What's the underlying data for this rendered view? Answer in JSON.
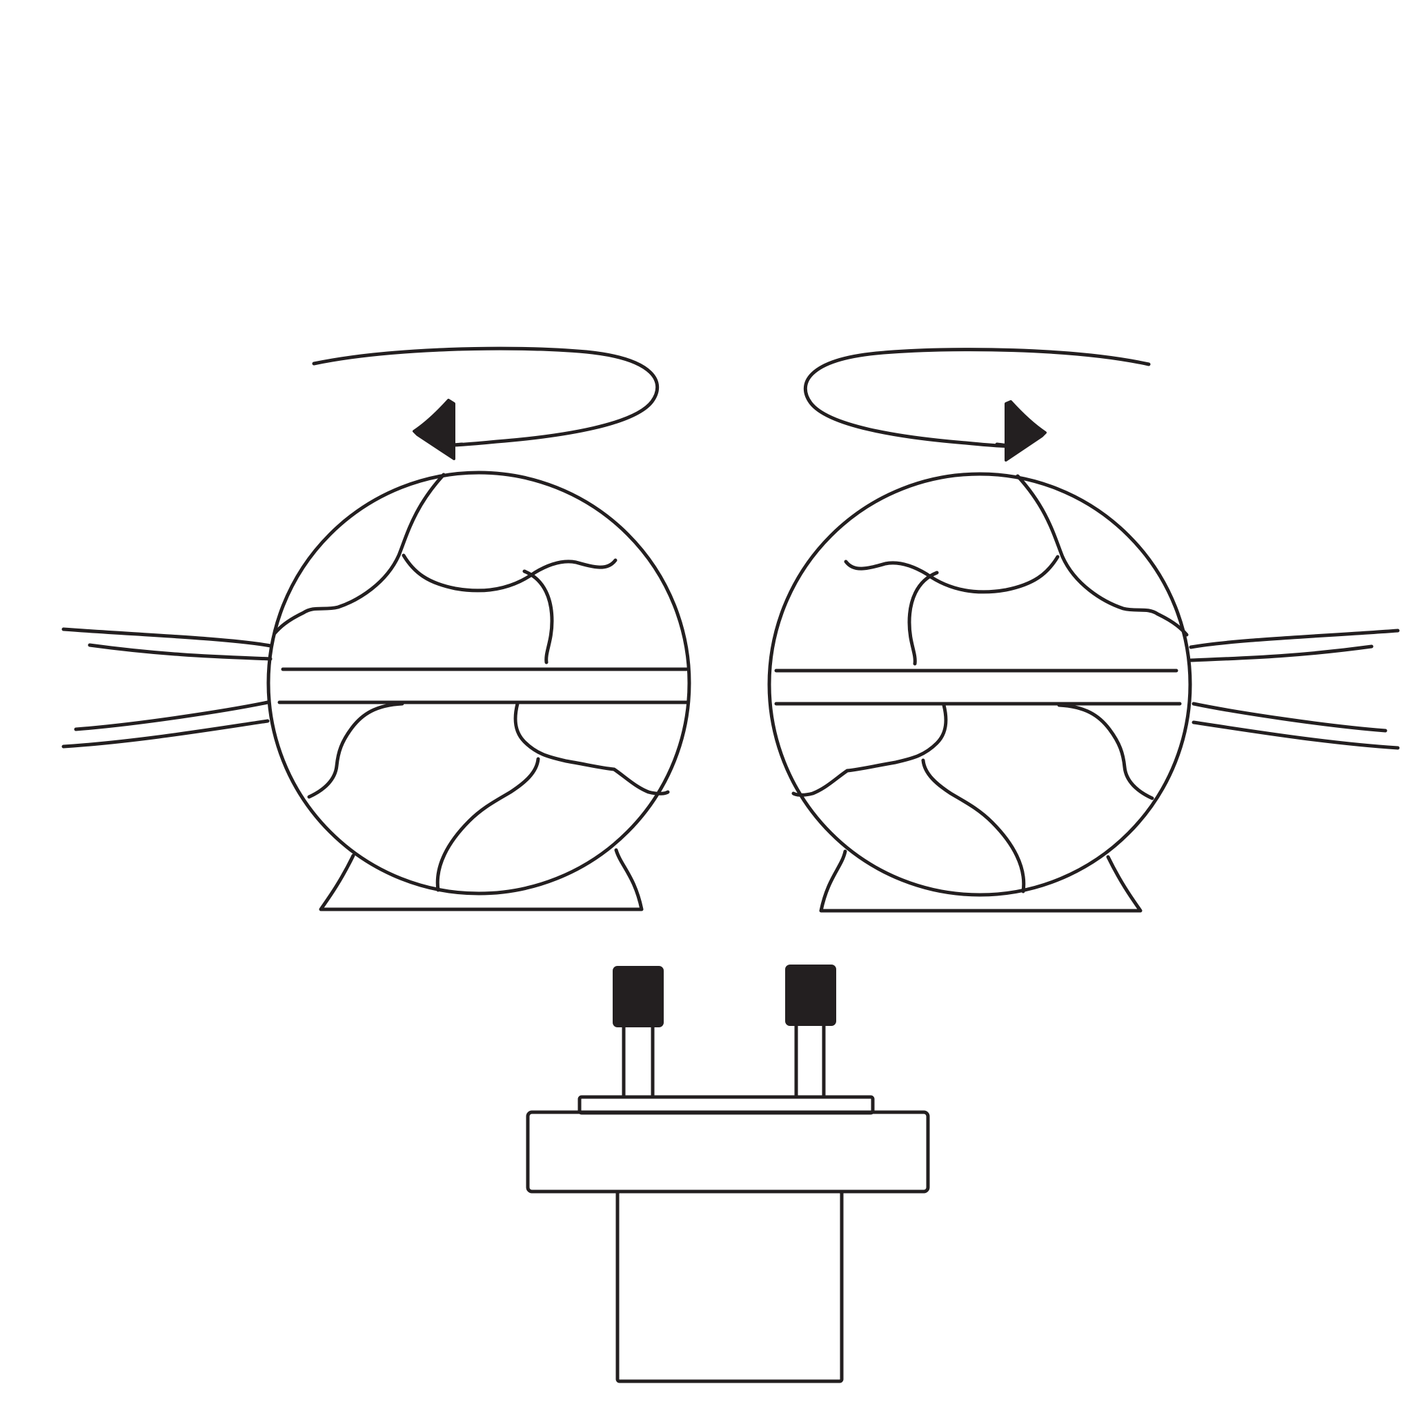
{
  "diagram": {
    "ink_color": "#231f20",
    "background_color": "#ffffff",
    "parts": [
      {
        "id": "left-sphere",
        "rotation": "counterclockwise",
        "icon": "rotation-arrow-icon"
      },
      {
        "id": "right-sphere",
        "rotation": "clockwise",
        "icon": "rotation-arrow-icon"
      },
      {
        "id": "base-unit",
        "connectors": 2
      }
    ]
  }
}
